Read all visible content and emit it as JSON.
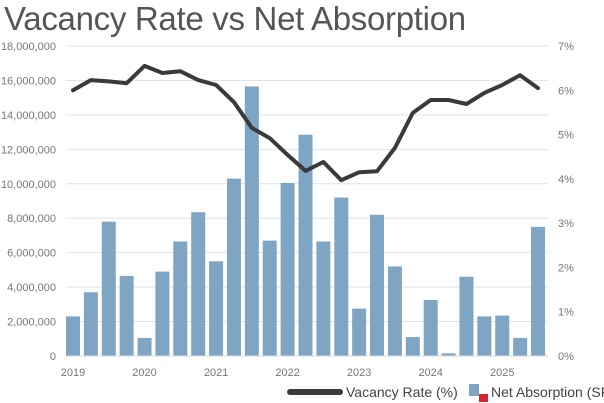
{
  "chart_data": {
    "type": "bar+line",
    "title": "Vacancy Rate vs Net Absorption",
    "x_tick_labels": [
      "2019",
      "2020",
      "2021",
      "2022",
      "2023",
      "2024",
      "2025"
    ],
    "quarters_per_year": 4,
    "left_axis": {
      "min": 0,
      "max": 18000000,
      "step": 2000000,
      "tick_labels": [
        "0",
        "2,000,000",
        "4,000,000",
        "6,000,000",
        "8,000,000",
        "10,000,000",
        "12,000,000",
        "14,000,000",
        "16,000,000",
        "18,000,000"
      ]
    },
    "right_axis": {
      "min": 0,
      "max": 7,
      "step": 1,
      "tick_labels": [
        "0%",
        "1%",
        "2%",
        "3%",
        "4%",
        "5%",
        "6%",
        "7%"
      ]
    },
    "grid": true,
    "legend_placement": "bottom-right",
    "series": [
      {
        "name": "Net Absorption (SF)",
        "type": "bar",
        "axis": "left",
        "color": "#7fa5c4",
        "values": [
          2300000,
          3700000,
          7800000,
          4650000,
          1050000,
          4900000,
          6650000,
          8350000,
          5500000,
          10300000,
          15650000,
          6700000,
          10050000,
          12850000,
          6650000,
          9200000,
          2750000,
          8200000,
          5200000,
          1100000,
          3250000,
          150000,
          4600000,
          2300000,
          2350000,
          1050000,
          7500000
        ]
      },
      {
        "name": "Vacancy Rate (%)",
        "type": "line",
        "axis": "right",
        "color": "#3a3a3a",
        "values": [
          6.0,
          6.23,
          6.2,
          6.16,
          6.55,
          6.39,
          6.43,
          6.23,
          6.12,
          5.73,
          5.15,
          4.92,
          4.54,
          4.18,
          4.38,
          3.97,
          4.15,
          4.17,
          4.7,
          5.49,
          5.78,
          5.78,
          5.69,
          5.94,
          6.12,
          6.34,
          6.05
        ]
      }
    ],
    "legend_marker_accent": "#d9232e"
  }
}
